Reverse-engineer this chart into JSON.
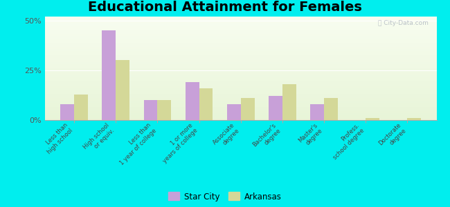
{
  "title": "Educational Attainment for Females",
  "categories": [
    "Less than\nhigh school",
    "High school\nor equiv.",
    "Less than\n1 year of college",
    "1 or more\nyears of college",
    "Associate\ndegree",
    "Bachelor's\ndegree",
    "Master's\ndegree",
    "Profess.\nschool degree",
    "Doctorate\ndegree"
  ],
  "star_city": [
    8,
    45,
    10,
    19,
    8,
    12,
    8,
    0,
    0
  ],
  "arkansas": [
    13,
    30,
    10,
    16,
    11,
    18,
    11,
    1,
    1
  ],
  "star_city_color": "#c8a0d8",
  "arkansas_color": "#d4d898",
  "outer_bg": "#00eeee",
  "plot_bg_top": "#f8fdf0",
  "plot_bg_bottom": "#e8f5d8",
  "ylim": [
    0,
    52
  ],
  "yticks": [
    0,
    25,
    50
  ],
  "ytick_labels": [
    "0%",
    "25%",
    "50%"
  ],
  "title_fontsize": 14,
  "legend_labels": [
    "Star City",
    "Arkansas"
  ],
  "watermark": "ⓘ City-Data.com"
}
